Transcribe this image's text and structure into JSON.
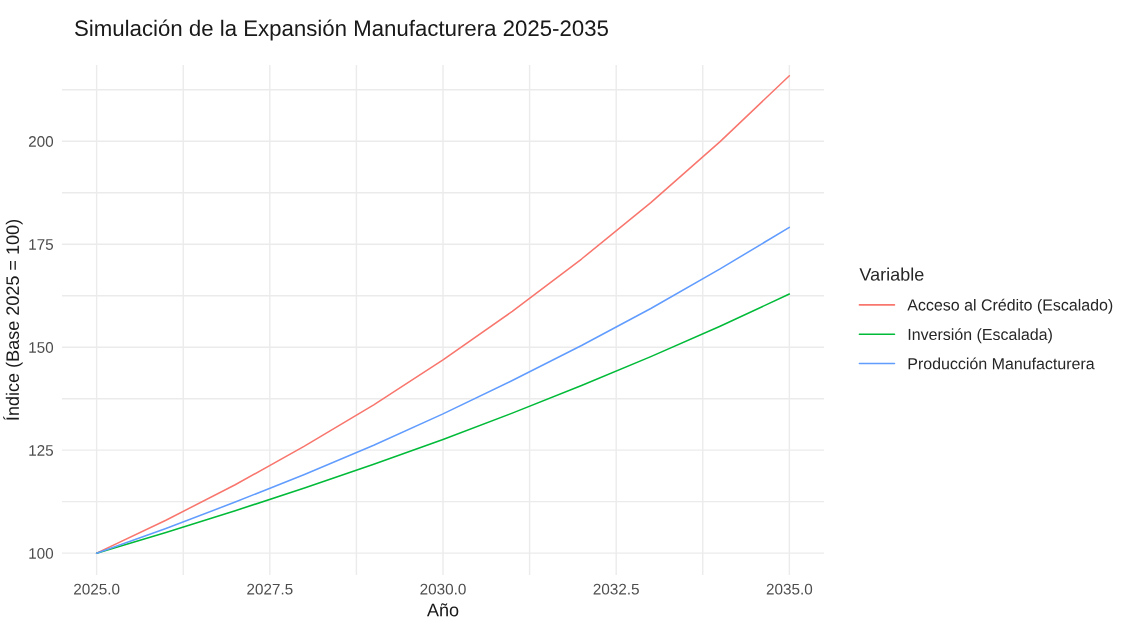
{
  "chart_data": {
    "type": "line",
    "title": "Simulación de la Expansión Manufacturera 2025-2035",
    "xlabel": "Año",
    "ylabel": "Índice (Base 2025 = 100)",
    "legend_title": "Variable",
    "x": [
      2025,
      2026,
      2027,
      2028,
      2029,
      2030,
      2031,
      2032,
      2033,
      2034,
      2035
    ],
    "series": [
      {
        "name": "Acceso al Crédito (Escalado)",
        "color": "#f8766d",
        "values": [
          100,
          108,
          116.6,
          126,
          136,
          146.9,
          158.7,
          171.4,
          185.1,
          199.9,
          215.9
        ]
      },
      {
        "name": "Inversión (Escalada)",
        "color": "#00ba38",
        "values": [
          100,
          105,
          110.3,
          115.8,
          121.6,
          127.6,
          134,
          140.7,
          147.7,
          155.1,
          162.9
        ]
      },
      {
        "name": "Producción Manufacturera",
        "color": "#619cff",
        "values": [
          100,
          106,
          112.4,
          119.1,
          126.2,
          133.8,
          141.9,
          150.4,
          159.4,
          169,
          179.1
        ]
      }
    ],
    "xlim": [
      2024.5,
      2035.5
    ],
    "ylim": [
      94.7,
      218.5
    ],
    "xticks": [
      {
        "value": 2025,
        "label": "2025.0"
      },
      {
        "value": 2026.25,
        "label": null
      },
      {
        "value": 2027.5,
        "label": "2027.5"
      },
      {
        "value": 2028.75,
        "label": null
      },
      {
        "value": 2030,
        "label": "2030.0"
      },
      {
        "value": 2031.25,
        "label": null
      },
      {
        "value": 2032.5,
        "label": "2032.5"
      },
      {
        "value": 2033.75,
        "label": null
      },
      {
        "value": 2035,
        "label": "2035.0"
      }
    ],
    "yticks": [
      100,
      {
        "value": 112.5,
        "label": null
      },
      125,
      {
        "value": 137.5,
        "label": null
      },
      150,
      {
        "value": 162.5,
        "label": null
      },
      175,
      {
        "value": 187.5,
        "label": null
      },
      200,
      {
        "value": 212.5,
        "label": null
      }
    ],
    "grid": true,
    "legend": "right",
    "marker": "none",
    "line_style": "solid"
  }
}
